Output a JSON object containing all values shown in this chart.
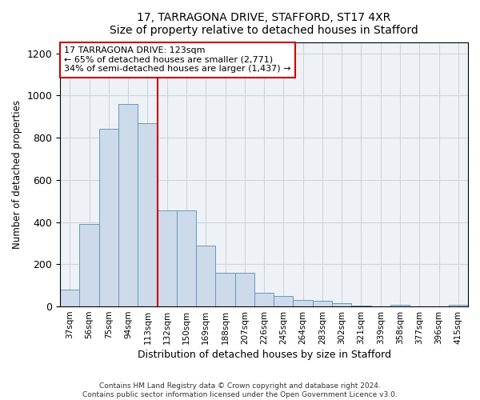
{
  "title": "17, TARRAGONA DRIVE, STAFFORD, ST17 4XR",
  "subtitle": "Size of property relative to detached houses in Stafford",
  "xlabel": "Distribution of detached houses by size in Stafford",
  "ylabel": "Number of detached properties",
  "categories": [
    "37sqm",
    "56sqm",
    "75sqm",
    "94sqm",
    "113sqm",
    "132sqm",
    "150sqm",
    "169sqm",
    "188sqm",
    "207sqm",
    "226sqm",
    "245sqm",
    "264sqm",
    "283sqm",
    "302sqm",
    "321sqm",
    "339sqm",
    "358sqm",
    "377sqm",
    "396sqm",
    "415sqm"
  ],
  "values": [
    80,
    390,
    840,
    960,
    870,
    455,
    455,
    290,
    160,
    160,
    65,
    50,
    30,
    25,
    15,
    5,
    0,
    8,
    0,
    0,
    8
  ],
  "bar_color": "#ccdaea",
  "bar_edge_color": "#6699bb",
  "highlight_color": "#cc0000",
  "annotation_line1": "17 TARRAGONA DRIVE: 123sqm",
  "annotation_line2": "← 65% of detached houses are smaller (2,771)",
  "annotation_line3": "34% of semi-detached houses are larger (1,437) →",
  "annotation_box_color": "white",
  "annotation_box_edge": "#cc0000",
  "ylim": [
    0,
    1250
  ],
  "yticks": [
    0,
    200,
    400,
    600,
    800,
    1000,
    1200
  ],
  "footer_line1": "Contains HM Land Registry data © Crown copyright and database right 2024.",
  "footer_line2": "Contains public sector information licensed under the Open Government Licence v3.0.",
  "bg_color": "#eef2f7",
  "grid_color": "#ccd4dd"
}
